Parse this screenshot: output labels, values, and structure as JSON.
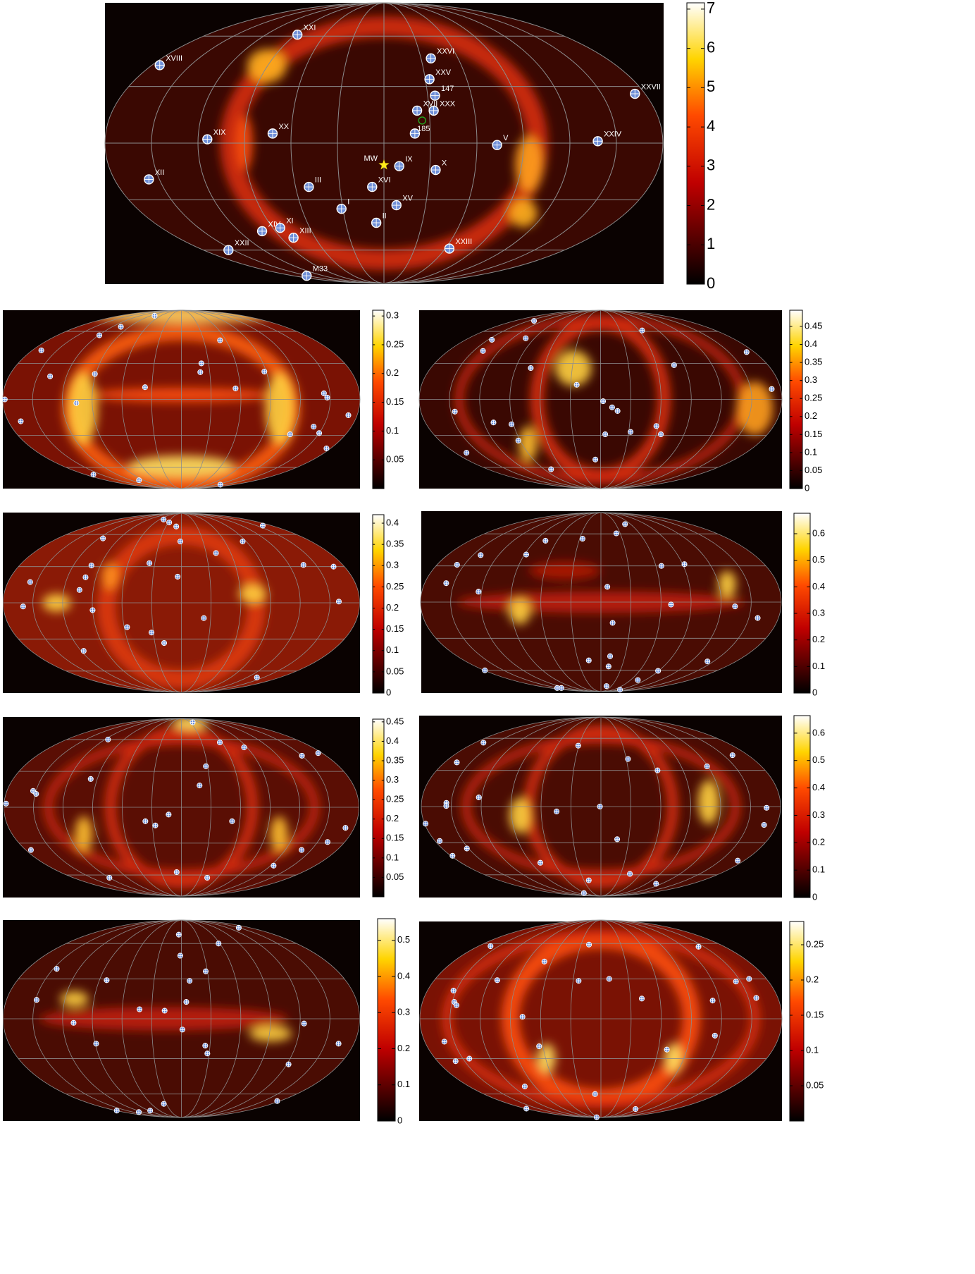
{
  "chart_data": [
    {
      "type": "skymap",
      "colormap": "hot",
      "graticule": true,
      "ylim": [
        0,
        7.16
      ],
      "yticks": [
        0,
        1,
        2,
        3,
        4,
        5,
        6,
        7
      ],
      "points": {
        "color": "#6f8fd8",
        "labels": [
          "XXI",
          "XVIII",
          "XXVI",
          "XXV",
          "147",
          "XVII",
          "XXX",
          null,
          "XX",
          "XIX",
          "V",
          "XXIV",
          "XXVII",
          "IX",
          "X",
          "XII",
          "III",
          "XVI",
          "I",
          "XV",
          "II",
          "XIV",
          "XI",
          "XIII",
          "XXII",
          "XXIII",
          "M33"
        ],
        "lon": [
          -88,
          -174,
          38,
          33,
          35,
          22,
          33,
          20,
          -72,
          -114,
          73,
          138,
          173,
          10,
          34,
          -157,
          -51,
          -8,
          -31,
          9,
          -6,
          -101,
          -84,
          -79,
          -155,
          64,
          -153
        ],
        "lat": [
          61,
          42,
          46,
          34,
          25,
          17,
          17,
          5,
          5,
          2,
          -1,
          1,
          26,
          -12,
          -14,
          -19,
          -23,
          -23,
          -35,
          -33,
          -43,
          -48,
          -46,
          -52,
          -60,
          -59,
          -80
        ]
      },
      "milky_way": {
        "label": "MW",
        "lon": 0,
        "lat": -11.4,
        "color": "#ffe81a"
      },
      "open_circle": {
        "label": "185",
        "lon": 25,
        "lat": 11.8,
        "color": "#22aa22"
      }
    },
    {
      "type": "skymap",
      "colormap": "hot",
      "graticule": true,
      "ylim": [
        0,
        0.31
      ],
      "yticks": [
        0.05,
        0.1,
        0.15,
        0.2,
        0.25,
        0.3
      ],
      "points": {
        "color": "#6f8fd8",
        "lon": [
          -78,
          -105,
          -119,
          -169,
          -137,
          -91,
          22,
          20,
          -37,
          52,
          55,
          88,
          144,
          147,
          -106,
          -178,
          -167,
          171,
          140,
          150,
          119,
          175,
          -165,
          -101,
          134
        ],
        "lat": [
          79,
          65,
          56,
          41.5,
          19,
          21,
          30,
          22.5,
          10,
          51,
          9,
          23,
          5,
          1.5,
          -3,
          0,
          -18,
          -13,
          -22.5,
          -28,
          -29,
          -41.5,
          -68,
          -75,
          -81.5
        ]
      }
    },
    {
      "type": "skymap",
      "colormap": "hot",
      "graticule": true,
      "ylim": [
        0,
        0.495
      ],
      "yticks": [
        0,
        0.05,
        0.1,
        0.15,
        0.2,
        0.25,
        0.3,
        0.35,
        0.4,
        0.45
      ],
      "points": {
        "color": "#6f8fd8",
        "lon": [
          -139,
          -102,
          -145,
          -139,
          -74,
          -24,
          65,
          79,
          171,
          171,
          -146,
          2.5,
          11.5,
          17,
          -110,
          -92,
          -92,
          -166,
          5,
          32,
          58,
          65,
          -7,
          -79
        ],
        "lat": [
          72,
          53,
          51.5,
          41,
          26,
          12,
          61,
          28.5,
          40,
          8.5,
          -10,
          -1.5,
          -6.5,
          -9.5,
          -19,
          -20.5,
          -34.5,
          -45.5,
          -29,
          -27,
          -22,
          -29,
          -52,
          -62
        ]
      }
    },
    {
      "type": "skymap",
      "colormap": "hot",
      "graticule": true,
      "ylim": [
        0,
        0.42
      ],
      "yticks": [
        0,
        0.05,
        0.1,
        0.15,
        0.2,
        0.25,
        0.3,
        0.35,
        0.4
      ],
      "points": {
        "color": "#6f8fd8",
        "lon": [
          -49,
          -28,
          -10,
          -114,
          162,
          -1.5,
          42,
          85,
          -36,
          -100,
          -101,
          -157,
          -104,
          -4,
          136,
          168,
          -160,
          -90,
          23,
          159,
          -57,
          -32,
          -19.5,
          -117,
          138
        ],
        "lat": [
          78,
          74,
          69,
          56,
          70,
          53,
          42,
          53,
          33,
          31,
          21,
          17,
          10.5,
          21.5,
          31.5,
          30,
          -3,
          -6,
          -12.5,
          1,
          -20,
          -24.5,
          -33.5,
          -40.5,
          -67
        ]
      }
    },
    {
      "type": "skymap",
      "colormap": "hot",
      "graticule": true,
      "ylim": [
        0,
        0.677
      ],
      "yticks": [
        0,
        0.1,
        0.2,
        0.3,
        0.4,
        0.5,
        0.6
      ],
      "points": {
        "color": "#6f8fd8",
        "lon": [
          -26,
          24,
          49,
          -76,
          -88,
          -141,
          -158,
          -158,
          -123,
          6.5,
          66,
          92,
          134,
          159,
          12,
          70,
          -16,
          11.5,
          11,
          75,
          89,
          142,
          -179,
          -155,
          -140,
          16,
          92
        ],
        "lat": [
          55,
          60.5,
          71,
          53,
          40,
          39.5,
          31,
          15.5,
          8.5,
          12.5,
          30,
          31.5,
          -3.5,
          -13,
          -17,
          -2,
          -50,
          -46,
          -56,
          -71,
          -60.5,
          -51,
          -60,
          -82,
          -82,
          -79,
          -85
        ]
      }
    },
    {
      "type": "skymap",
      "colormap": "hot",
      "graticule": true,
      "ylim": [
        0,
        0.457
      ],
      "yticks": [
        0.05,
        0.1,
        0.15,
        0.2,
        0.25,
        0.3,
        0.35,
        0.4,
        0.45
      ],
      "points": {
        "color": "#6f8fd8",
        "lon": [
          39,
          -115,
          57,
          86,
          150,
          175,
          -97,
          28,
          19,
          -153,
          -149,
          -178,
          -13,
          -37,
          -27,
          52,
          171,
          161,
          139,
          -174,
          124,
          -7,
          -120,
          43
        ],
        "lat": [
          81.5,
          60,
          57,
          52,
          44,
          46.5,
          23.5,
          34.5,
          18,
          13.5,
          11,
          3,
          -6,
          -11.5,
          -15,
          -11.5,
          -17,
          -29,
          -36,
          -36,
          -50.5,
          -57,
          -63,
          -63
        ]
      }
    },
    {
      "type": "skymap",
      "colormap": "hot",
      "graticule": true,
      "ylim": [
        0,
        0.664
      ],
      "yticks": [
        0,
        0.1,
        0.2,
        0.3,
        0.4,
        0.5,
        0.6
      ],
      "points": {
        "color": "#6f8fd8",
        "lon": [
          -168,
          -166,
          -31,
          32,
          62,
          161,
          119,
          -123,
          -155,
          -155,
          -179,
          -1,
          -44.5,
          166,
          167,
          17.5,
          -152,
          -175,
          -178,
          -78,
          172,
          -21.5,
          44,
          109,
          -66
        ],
        "lat": [
          55.5,
          37,
          52.5,
          40,
          30,
          43.5,
          33.5,
          7.5,
          3,
          0.5,
          -14,
          0,
          -4,
          -1,
          -15,
          -27,
          -35,
          -28.5,
          -41.5,
          -48,
          -46,
          -66,
          -59,
          -70,
          -83
        ]
      }
    },
    {
      "type": "skymap",
      "colormap": "hot",
      "graticule": true,
      "ylim": [
        0,
        0.56
      ],
      "yticks": [
        0,
        0.1,
        0.2,
        0.3,
        0.4,
        0.5
      ],
      "points": {
        "color": "#6f8fd8",
        "lon": [
          -5,
          150,
          58,
          -146,
          -82,
          -1.5,
          9,
          28,
          -149,
          5,
          -42.5,
          -17,
          -109,
          1,
          -89,
          124,
          164,
          25,
          28,
          122,
          -35,
          -178,
          -132,
          -86,
          175
        ],
        "lat": [
          69,
          77,
          60,
          38,
          29,
          49,
          28.5,
          36,
          14,
          12.5,
          7,
          6,
          -3,
          -8,
          -18.5,
          -3.5,
          -18.5,
          -20,
          -26,
          -34.5,
          -70,
          -78,
          -80,
          -78,
          -67
        ]
      }
    },
    {
      "type": "skymap",
      "colormap": "hot",
      "graticule": true,
      "ylim": [
        0,
        0.283
      ],
      "yticks": [
        0.05,
        0.1,
        0.15,
        0.2,
        0.25
      ],
      "points": {
        "color": "#6f8fd8",
        "lon": [
          -162,
          -69,
          -18,
          142,
          161,
          158,
          145,
          -112,
          -153,
          -148,
          -145,
          -78,
          -24,
          9,
          41.5,
          113,
          115,
          -160,
          -160,
          -143,
          -64,
          69,
          -9,
          -104,
          -179,
          -60,
          85
        ],
        "lat": [
          57.5,
          44,
          59,
          57,
          30,
          15.5,
          28,
          29,
          21,
          12.5,
          10,
          1.5,
          28.5,
          30,
          15,
          13.5,
          -12.5,
          -17,
          -32,
          -30,
          -20.5,
          -23,
          -60,
          -53,
          -75.5,
          -89,
          -76
        ]
      }
    }
  ]
}
